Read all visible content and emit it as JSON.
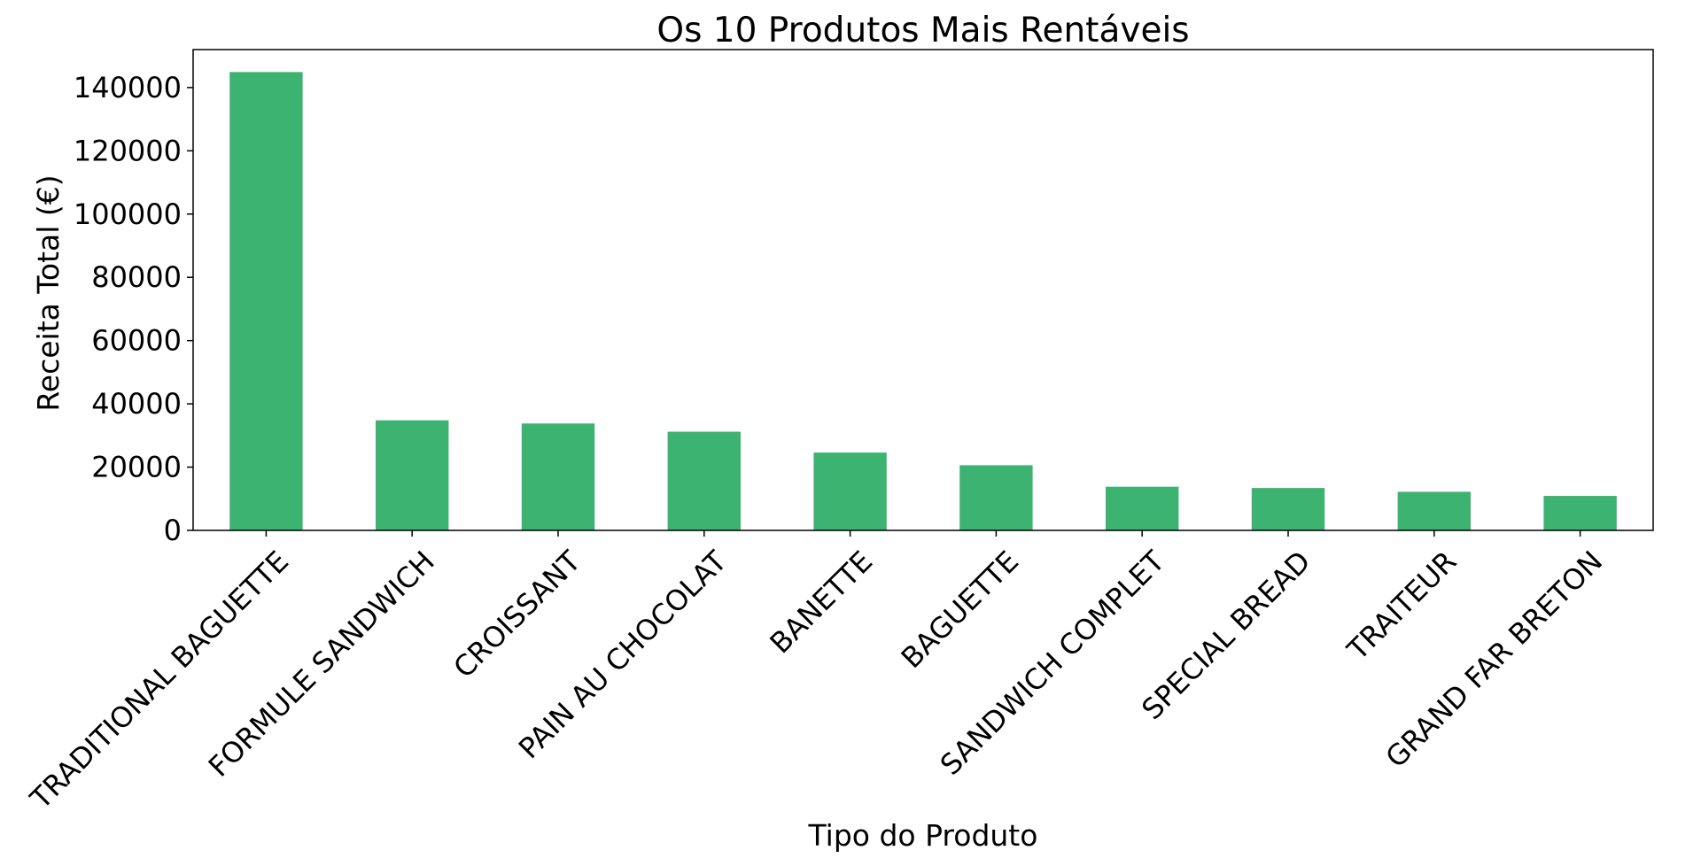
{
  "chart_data": {
    "type": "bar",
    "title": "Os 10 Produtos Mais Rentáveis",
    "xlabel": "Tipo do Produto",
    "ylabel": "Receita Total (€)",
    "ylim": [
      0,
      152000
    ],
    "yticks": [
      0,
      20000,
      40000,
      60000,
      80000,
      100000,
      120000,
      140000
    ],
    "bar_color": "#3CB371",
    "categories": [
      "TRADITIONAL BAGUETTE",
      "FORMULE SANDWICH",
      "CROISSANT",
      "PAIN AU CHOCOLAT",
      "BANETTE",
      "BAGUETTE",
      "SANDWICH COMPLET",
      "SPECIAL BREAD",
      "TRAITEUR",
      "GRAND FAR BRETON"
    ],
    "values": [
      144900,
      34800,
      33800,
      31200,
      24600,
      20600,
      13800,
      13400,
      12200,
      10900
    ],
    "grid": false
  }
}
